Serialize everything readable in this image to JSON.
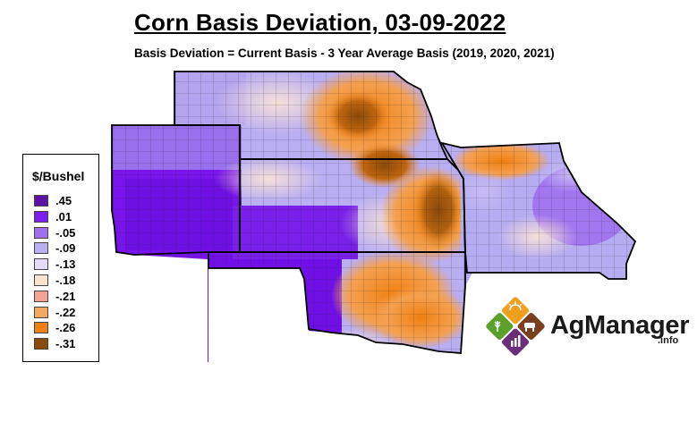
{
  "title": "Corn Basis Deviation, 03-09-2022",
  "subtitle": "Basis Deviation = Current Basis - 3 Year Average Basis (2019, 2020, 2021)",
  "legend": {
    "title": "$/Bushel",
    "items": [
      {
        "label": ".45",
        "color": "#5a12a8"
      },
      {
        "label": ".01",
        "color": "#7c1ef0"
      },
      {
        "label": "-.05",
        "color": "#a070f0"
      },
      {
        "label": "-.09",
        "color": "#b8b0f2"
      },
      {
        "label": "-.13",
        "color": "#e4dcf6"
      },
      {
        "label": "-.18",
        "color": "#f8e2d2"
      },
      {
        "label": "-.21",
        "color": "#f4a494"
      },
      {
        "label": "-.22",
        "color": "#f6a860"
      },
      {
        "label": "-.26",
        "color": "#f08010"
      },
      {
        "label": "-.31",
        "color": "#8a4a0a"
      }
    ]
  },
  "map": {
    "states": [
      "Colorado",
      "Nebraska",
      "Kansas",
      "Missouri",
      "Oklahoma"
    ],
    "colors": {
      "purple_dark": "#7010e6",
      "purple_mid": "#9a60ee",
      "lavender": "#c4b8f2",
      "pale": "#f2e6f0",
      "orange": "#f08a20",
      "brown": "#8a4a0a",
      "border": "#000000"
    }
  },
  "brand": {
    "name": "AgManager",
    "suffix": ".info",
    "logo_colors": [
      "#f0a020",
      "#7a3f1e",
      "#6b2f7a",
      "#5aa02a"
    ]
  }
}
